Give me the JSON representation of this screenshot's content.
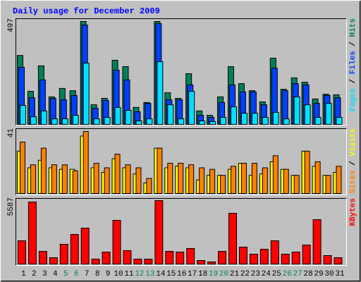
{
  "title": "Daily usage for December 2009",
  "chart_data": [
    {
      "type": "bar",
      "ylim": [
        0,
        497
      ],
      "yticks": [
        497
      ],
      "legend": "right",
      "series": [
        {
          "name": "Hits",
          "color": "#00805c",
          "values": [
            333,
            160,
            283,
            133,
            174,
            163,
            497,
            95,
            126,
            310,
            279,
            82,
            106,
            497,
            153,
            126,
            245,
            65,
            44,
            133,
            279,
            197,
            163,
            109,
            320,
            170,
            225,
            204,
            123,
            146,
            143
          ]
        },
        {
          "name": "Files",
          "color": "#0040ff",
          "values": [
            276,
            129,
            215,
            126,
            119,
            140,
            480,
            78,
            116,
            262,
            215,
            61,
            102,
            487,
            119,
            119,
            191,
            44,
            34,
            106,
            191,
            157,
            157,
            95,
            272,
            163,
            197,
            191,
            102,
            140,
            129
          ]
        },
        {
          "name": "Pages",
          "color": "#00e0ff",
          "values": [
            92,
            37,
            65,
            27,
            27,
            44,
            296,
            27,
            34,
            82,
            68,
            17,
            27,
            303,
            95,
            27,
            160,
            17,
            14,
            34,
            85,
            54,
            54,
            34,
            58,
            27,
            133,
            95,
            34,
            102,
            34
          ]
        }
      ]
    },
    {
      "type": "bar",
      "ylim": [
        0,
        41
      ],
      "yticks": [
        41
      ],
      "legend": "right",
      "series": [
        {
          "name": "Visits",
          "color": "#ffff00",
          "values": [
            28,
            17,
            22,
            17,
            16,
            16,
            38,
            17,
            14,
            23,
            17,
            13,
            7,
            30,
            17,
            18,
            17,
            9,
            12,
            12,
            16,
            20,
            12,
            13,
            21,
            16,
            12,
            28,
            18,
            12,
            14
          ]
        },
        {
          "name": "Sites",
          "color": "#ff8000",
          "values": [
            34,
            19,
            30,
            19,
            19,
            15,
            41,
            20,
            17,
            26,
            19,
            17,
            10,
            30,
            20,
            20,
            19,
            17,
            16,
            12,
            18,
            20,
            20,
            17,
            25,
            16,
            12,
            28,
            21,
            12,
            18
          ]
        }
      ]
    },
    {
      "type": "bar",
      "ylim": [
        0,
        5587
      ],
      "yticks": [
        5587
      ],
      "legend": "right",
      "categories": [
        "1",
        "2",
        "3",
        "4",
        "5",
        "6",
        "7",
        "8",
        "9",
        "10",
        "11",
        "12",
        "13",
        "14",
        "15",
        "16",
        "17",
        "18",
        "19",
        "20",
        "21",
        "22",
        "23",
        "24",
        "25",
        "26",
        "27",
        "28",
        "29",
        "30",
        "31"
      ],
      "category_colors": [
        "#000000",
        "#000000",
        "#000000",
        "#000000",
        "#00805c",
        "#00805c",
        "#000000",
        "#000000",
        "#000000",
        "#000000",
        "#000000",
        "#00805c",
        "#00805c",
        "#000000",
        "#000000",
        "#000000",
        "#000000",
        "#000000",
        "#00805c",
        "#00805c",
        "#000000",
        "#000000",
        "#000000",
        "#000000",
        "#000000",
        "#00805c",
        "#00805c",
        "#000000",
        "#000000",
        "#000000",
        "#000000"
      ],
      "series": [
        {
          "name": "KBytes",
          "color": "#ff0000",
          "values": [
            2049,
            5463,
            1117,
            559,
            1738,
            2607,
            3166,
            435,
            1055,
            3849,
            1180,
            435,
            435,
            5587,
            1117,
            1055,
            1366,
            310,
            186,
            1117,
            4470,
            1490,
            869,
            1304,
            2049,
            869,
            1055,
            1676,
            3911,
            745,
            559
          ]
        }
      ]
    }
  ]
}
